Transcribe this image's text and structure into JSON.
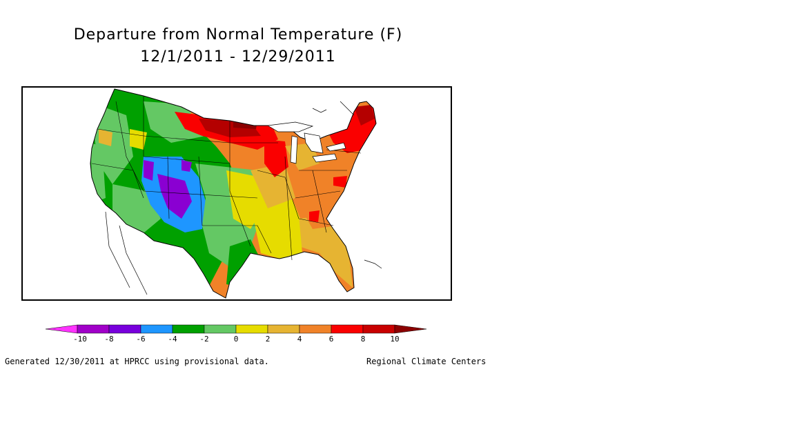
{
  "title": {
    "line1": "Departure from Normal Temperature (F)",
    "line2": "12/1/2011 - 12/29/2011"
  },
  "legend": {
    "tick_labels": [
      "-10",
      "-8",
      "-6",
      "-4",
      "-2",
      "0",
      "2",
      "4",
      "6",
      "8",
      "10"
    ],
    "colors": [
      "#ff33ff",
      "#a000c8",
      "#7800dc",
      "#1e96ff",
      "#00a000",
      "#64c864",
      "#e6dc00",
      "#e6b432",
      "#f08228",
      "#fa0000",
      "#c80000",
      "#8c0000"
    ]
  },
  "map": {
    "region": "Contiguous United States",
    "palette_used": {
      "purple": "#8a00d2",
      "blue": "#1e96ff",
      "dark_green": "#00a000",
      "green": "#64c864",
      "yellow": "#e6dc00",
      "gold": "#e6b432",
      "orange": "#f08228",
      "red": "#fa0000",
      "dark_red": "#b40000"
    }
  },
  "footer": {
    "left": "Generated 12/30/2011 at HPRCC using provisional data.",
    "right": "Regional Climate Centers"
  }
}
